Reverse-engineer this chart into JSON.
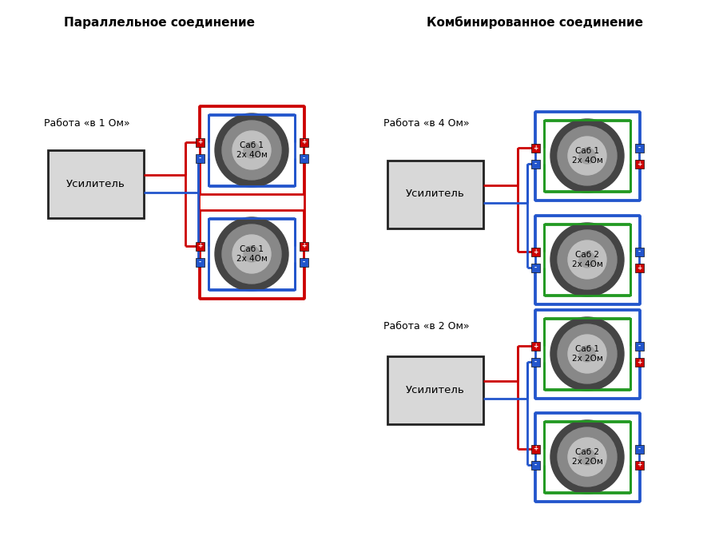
{
  "bg_color": "#ffffff",
  "title1": "Параллельное соединение",
  "title2": "Комбинированное соединение",
  "label1": "Работа «в 1 Ом»",
  "label2": "Работа «в 4 Ом»",
  "label3": "Работа «в 2 Ом»",
  "amp_text": "Усилитель",
  "red": "#cc0000",
  "blue": "#2255cc",
  "green": "#229922",
  "amp_fill": "#d8d8d8",
  "lw": 2.0
}
